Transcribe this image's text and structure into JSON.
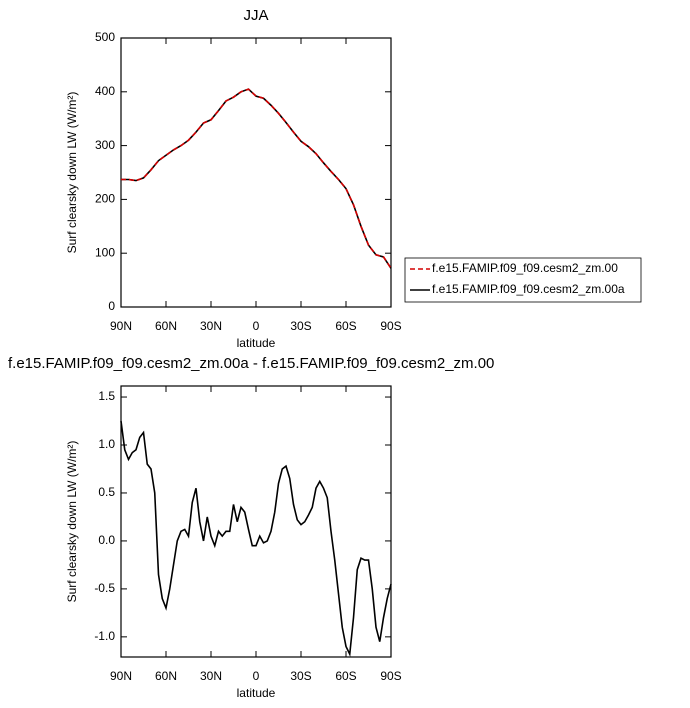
{
  "chart_data": [
    {
      "type": "line",
      "title": "JJA",
      "xlabel": "latitude",
      "ylabel": "Surf clearsky down LW (W/m²)",
      "x": [
        90,
        85,
        80,
        75,
        70,
        65,
        60,
        55,
        50,
        45,
        40,
        35,
        30,
        25,
        20,
        15,
        10,
        5,
        0,
        -5,
        -10,
        -15,
        -20,
        -25,
        -30,
        -35,
        -40,
        -45,
        -50,
        -55,
        -60,
        -65,
        -70,
        -75,
        -80,
        -85,
        -90
      ],
      "series": [
        {
          "name": "f.e15.FAMIP.f09_f09.cesm2_zm.00",
          "color": "#d40000",
          "line_style": "dashed",
          "values": [
            237,
            237,
            235,
            240,
            255,
            272,
            282,
            292,
            300,
            310,
            325,
            342,
            348,
            365,
            383,
            390,
            400,
            405,
            392,
            388,
            375,
            360,
            343,
            325,
            308,
            298,
            285,
            268,
            252,
            237,
            220,
            190,
            150,
            115,
            97,
            93,
            72
          ]
        },
        {
          "name": "f.e15.FAMIP.f09_f09.cesm2_zm.00a",
          "color": "#000000",
          "line_style": "solid",
          "values": [
            237,
            237,
            235,
            240,
            255,
            272,
            282,
            292,
            300,
            310,
            325,
            342,
            348,
            365,
            383,
            390,
            400,
            405,
            392,
            388,
            375,
            360,
            343,
            325,
            308,
            298,
            285,
            268,
            252,
            237,
            220,
            190,
            150,
            115,
            97,
            93,
            72
          ]
        }
      ],
      "xlim": [
        90,
        -90
      ],
      "xticks": [
        {
          "value": 90,
          "label": "90N"
        },
        {
          "value": 60,
          "label": "60N"
        },
        {
          "value": 30,
          "label": "30N"
        },
        0,
        {
          "value": -30,
          "label": "30S"
        },
        {
          "value": -60,
          "label": "60S"
        },
        {
          "value": -90,
          "label": "90S"
        }
      ],
      "ylim": [
        0,
        500
      ],
      "yticks": [
        0,
        100,
        200,
        300,
        400,
        500
      ],
      "legend_position": "outside-right"
    },
    {
      "type": "line",
      "title": "f.e15.FAMIP.f09_f09.cesm2_zm.00a - f.e15.FAMIP.f09_f09.cesm2_zm.00",
      "xlabel": "latitude",
      "ylabel": "Surf clearsky down LW (W/m²)",
      "x": [
        90,
        87.5,
        85,
        82.5,
        80,
        77.5,
        75,
        72.5,
        70,
        67.5,
        65,
        62.5,
        60,
        57.5,
        55,
        52.5,
        50,
        47.5,
        45,
        42.5,
        40,
        37.5,
        35,
        32.5,
        30,
        27.5,
        25,
        22.5,
        20,
        17.5,
        15,
        12.5,
        10,
        7.5,
        5,
        2.5,
        0,
        -2.5,
        -5,
        -7.5,
        -10,
        -12.5,
        -15,
        -17.5,
        -20,
        -22.5,
        -25,
        -27.5,
        -30,
        -32.5,
        -35,
        -37.5,
        -40,
        -42.5,
        -45,
        -47.5,
        -50,
        -52.5,
        -55,
        -57.5,
        -60,
        -62.5,
        -65,
        -67.5,
        -70,
        -72.5,
        -75,
        -77.5,
        -80,
        -82.5,
        -85,
        -87.5,
        -90
      ],
      "series": [
        {
          "color": "#000000",
          "line_style": "solid",
          "values": [
            1.25,
            0.95,
            0.85,
            0.92,
            0.95,
            1.08,
            1.13,
            0.8,
            0.75,
            0.5,
            -0.35,
            -0.6,
            -0.7,
            -0.5,
            -0.25,
            0.0,
            0.1,
            0.12,
            0.05,
            0.4,
            0.55,
            0.2,
            0.0,
            0.25,
            0.05,
            -0.05,
            0.1,
            0.05,
            0.1,
            0.1,
            0.38,
            0.2,
            0.35,
            0.3,
            0.12,
            -0.05,
            -0.05,
            0.05,
            -0.02,
            0.0,
            0.1,
            0.3,
            0.6,
            0.75,
            0.78,
            0.65,
            0.38,
            0.22,
            0.17,
            0.2,
            0.27,
            0.35,
            0.55,
            0.62,
            0.55,
            0.45,
            0.1,
            -0.2,
            -0.55,
            -0.9,
            -1.1,
            -1.18,
            -0.8,
            -0.3,
            -0.18,
            -0.2,
            -0.2,
            -0.5,
            -0.9,
            -1.05,
            -0.8,
            -0.6,
            -0.45
          ]
        }
      ],
      "xlim": [
        90,
        -90
      ],
      "xticks": [
        {
          "value": 90,
          "label": "90N"
        },
        {
          "value": 60,
          "label": "60N"
        },
        {
          "value": 30,
          "label": "30N"
        },
        0,
        {
          "value": -30,
          "label": "30S"
        },
        {
          "value": -60,
          "label": "60S"
        },
        {
          "value": -90,
          "label": "90S"
        }
      ],
      "ylim": [
        -1.21,
        1.615
      ],
      "yticks": [
        {
          "value": -1,
          "label": "-1.0"
        },
        -0.5,
        {
          "value": 0,
          "label": "0.0"
        },
        0.5,
        {
          "value": 1,
          "label": "1.0"
        },
        1.5
      ]
    }
  ]
}
